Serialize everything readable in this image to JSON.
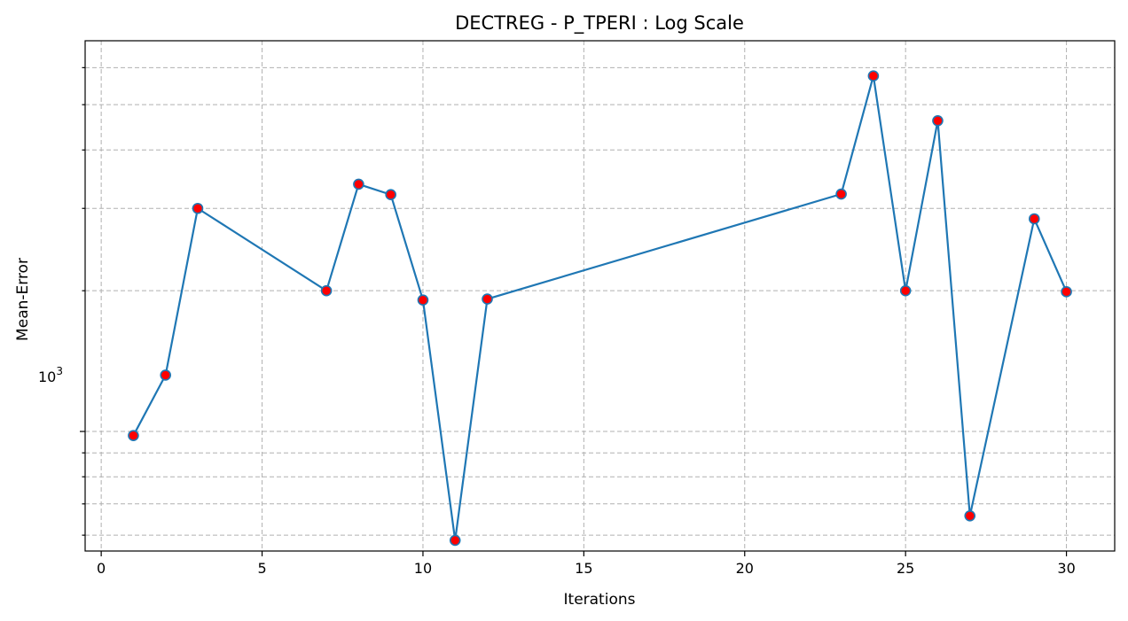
{
  "chart_data": {
    "type": "line",
    "title": "DECTREG - P_TPERI : Log Scale",
    "xlabel": "Iterations",
    "ylabel": "Mean-Error",
    "yscale": "log",
    "xlim": [
      -0.5,
      31.5
    ],
    "ylim": [
      555,
      6850
    ],
    "x_ticks": [
      0,
      5,
      10,
      15,
      20,
      25,
      30
    ],
    "x_tick_labels": [
      "0",
      "5",
      "10",
      "15",
      "20",
      "25",
      "30"
    ],
    "y_major_ticks": [
      1000
    ],
    "y_major_tick_label_base": "10",
    "y_major_tick_label_exp": "3",
    "y_minor_ticks": [
      600,
      700,
      800,
      900,
      2000,
      3000,
      4000,
      5000,
      6000
    ],
    "grid": true,
    "line_color": "#1f77b4",
    "marker_face_color": "#ff0000",
    "marker_edge_color": "#1f77b4",
    "series": [
      {
        "x": [
          1,
          2,
          3,
          7,
          8,
          9,
          10,
          11,
          12,
          23,
          24,
          25,
          26,
          27,
          29,
          30
        ],
        "y": [
          980,
          1320,
          3000,
          2000,
          3380,
          3210,
          1910,
          585,
          1920,
          3220,
          5760,
          2000,
          4620,
          660,
          2850,
          1990
        ]
      }
    ]
  }
}
